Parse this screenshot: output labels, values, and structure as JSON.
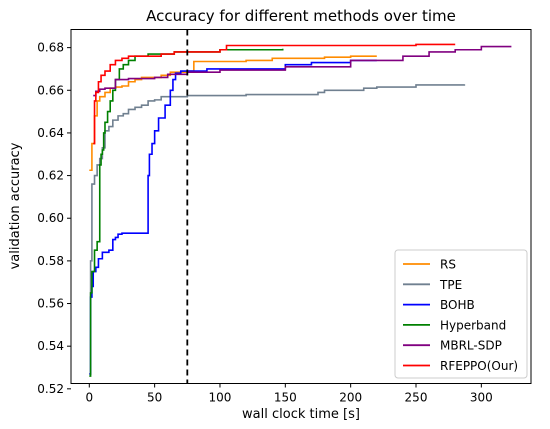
{
  "chart_data": {
    "type": "line",
    "title": "Accuracy for different methods over time",
    "xlabel": "wall clock time [s]",
    "ylabel": "validation accuracy",
    "xlim": [
      -14,
      338
    ],
    "ylim": [
      0.5225,
      0.6885
    ],
    "xticks": [
      0,
      50,
      100,
      150,
      200,
      250,
      300
    ],
    "yticks": [
      0.52,
      0.54,
      0.56,
      0.58,
      0.6,
      0.62,
      0.64,
      0.66,
      0.68
    ],
    "xtick_labels": [
      "0",
      "50",
      "100",
      "150",
      "200",
      "250",
      "300"
    ],
    "ytick_labels": [
      "0.52",
      "0.54",
      "0.56",
      "0.58",
      "0.60",
      "0.62",
      "0.64",
      "0.66",
      "0.68"
    ],
    "grid": false,
    "legend_position": "lower-right",
    "vline": {
      "x": 75,
      "style": "dashed",
      "color": "#000000"
    },
    "series": [
      {
        "name": "RS",
        "color": "#ff8c00",
        "x": [
          0,
          2,
          4,
          6,
          8,
          12,
          16,
          20,
          25,
          30,
          35,
          40,
          55,
          62,
          75,
          80,
          100,
          120,
          140,
          160,
          180,
          200,
          220
        ],
        "y": [
          0.6225,
          0.635,
          0.648,
          0.655,
          0.657,
          0.659,
          0.661,
          0.6615,
          0.662,
          0.664,
          0.665,
          0.666,
          0.667,
          0.6685,
          0.669,
          0.6735,
          0.6735,
          0.674,
          0.675,
          0.675,
          0.6755,
          0.676,
          0.676
        ]
      },
      {
        "name": "TPE",
        "color": "#708090",
        "x": [
          0,
          1,
          2,
          4,
          6,
          8,
          10,
          12,
          15,
          18,
          22,
          26,
          30,
          35,
          40,
          45,
          50,
          55,
          60,
          75,
          90,
          120,
          150,
          175,
          180,
          200,
          210,
          220,
          250,
          270,
          287
        ],
        "y": [
          0.527,
          0.58,
          0.616,
          0.62,
          0.625,
          0.628,
          0.633,
          0.641,
          0.643,
          0.646,
          0.648,
          0.649,
          0.651,
          0.652,
          0.653,
          0.655,
          0.6555,
          0.657,
          0.657,
          0.6575,
          0.6575,
          0.658,
          0.658,
          0.659,
          0.66,
          0.66,
          0.661,
          0.6615,
          0.6625,
          0.6625,
          0.6628
        ]
      },
      {
        "name": "BOHB",
        "color": "#0000ff",
        "x": [
          0,
          1,
          2,
          3,
          5,
          7,
          10,
          15,
          18,
          20,
          22,
          25,
          35,
          44,
          45,
          46,
          48,
          50,
          53,
          58,
          62,
          64,
          66,
          70,
          75,
          80,
          90,
          120,
          150,
          170,
          200,
          220
        ],
        "y": [
          0.527,
          0.563,
          0.568,
          0.575,
          0.577,
          0.581,
          0.584,
          0.585,
          0.59,
          0.591,
          0.5925,
          0.593,
          0.593,
          0.593,
          0.62,
          0.63,
          0.635,
          0.641,
          0.647,
          0.653,
          0.66,
          0.665,
          0.668,
          0.669,
          0.669,
          0.669,
          0.67,
          0.67,
          0.672,
          0.673,
          0.674,
          0.674
        ]
      },
      {
        "name": "Hyperband",
        "color": "#008000",
        "x": [
          0,
          1,
          2,
          4,
          6,
          8,
          9,
          10,
          11,
          12,
          14,
          16,
          18,
          20,
          23,
          26,
          30,
          35,
          45,
          55,
          65,
          75,
          100,
          120,
          148
        ],
        "y": [
          0.526,
          0.565,
          0.575,
          0.585,
          0.589,
          0.625,
          0.63,
          0.632,
          0.64,
          0.645,
          0.65,
          0.655,
          0.66,
          0.665,
          0.67,
          0.672,
          0.674,
          0.676,
          0.677,
          0.677,
          0.678,
          0.678,
          0.679,
          0.679,
          0.6795
        ]
      },
      {
        "name": "MBRL-SDP",
        "color": "#800080",
        "x": [
          3,
          5,
          8,
          12,
          20,
          30,
          50,
          60,
          75,
          100,
          150,
          200,
          240,
          260,
          280,
          300,
          323
        ],
        "y": [
          0.6575,
          0.6595,
          0.6605,
          0.661,
          0.665,
          0.6655,
          0.666,
          0.6675,
          0.6685,
          0.6695,
          0.671,
          0.674,
          0.676,
          0.678,
          0.679,
          0.6805,
          0.6805
        ]
      },
      {
        "name": "RFEPPO(Our)",
        "color": "#ff0000",
        "x": [
          3,
          4,
          5,
          7,
          9,
          12,
          16,
          20,
          25,
          30,
          40,
          55,
          65,
          75,
          100,
          105,
          150,
          200,
          250,
          280
        ],
        "y": [
          0.635,
          0.655,
          0.659,
          0.664,
          0.667,
          0.669,
          0.672,
          0.674,
          0.675,
          0.676,
          0.676,
          0.677,
          0.678,
          0.678,
          0.679,
          0.681,
          0.681,
          0.681,
          0.6815,
          0.6815
        ]
      }
    ]
  }
}
